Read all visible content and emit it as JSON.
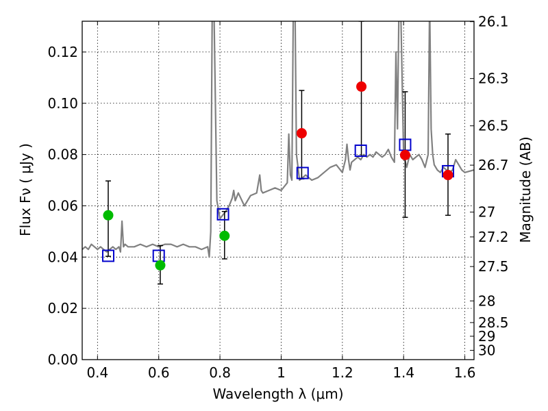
{
  "chart_data": {
    "type": "scatter",
    "xlabel": "Wavelength  λ (μm)",
    "ylabel": "Flux  Fν  ( μJy )",
    "y2label": "Magnitude (AB)",
    "xlim": [
      0.35,
      1.63
    ],
    "ylim": [
      0.0,
      0.132
    ],
    "grid": true,
    "x_ticks": [
      0.4,
      0.6,
      0.8,
      1.0,
      1.2,
      1.4,
      1.6
    ],
    "x_tick_labels": [
      "0.4",
      "0.6",
      "0.8",
      "1",
      "1.2",
      "1.4",
      "1.6"
    ],
    "y_ticks": [
      0.0,
      0.02,
      0.04,
      0.06,
      0.08,
      0.1,
      0.12
    ],
    "y_tick_labels": [
      "0.00",
      "0.02",
      "0.04",
      "0.06",
      "0.08",
      "0.10",
      "0.12"
    ],
    "y2_ticks": [
      "26.1",
      "26.3",
      "26.5",
      "26.7",
      "27",
      "27.2",
      "27.5",
      "28",
      "28.5",
      "29",
      "30"
    ],
    "colors": {
      "spectrum": "#808080",
      "green": "#00bb00",
      "red": "#ee0000",
      "model": "#0000cc",
      "errorbar": "#000000"
    },
    "spectrum": {
      "name": "model spectrum",
      "x": [
        0.35,
        0.36,
        0.37,
        0.38,
        0.39,
        0.4,
        0.41,
        0.42,
        0.43,
        0.44,
        0.45,
        0.46,
        0.47,
        0.475,
        0.48,
        0.485,
        0.49,
        0.5,
        0.52,
        0.54,
        0.56,
        0.58,
        0.6,
        0.62,
        0.64,
        0.66,
        0.68,
        0.7,
        0.72,
        0.74,
        0.76,
        0.765,
        0.77,
        0.775,
        0.78,
        0.79,
        0.8,
        0.82,
        0.83,
        0.84,
        0.845,
        0.85,
        0.86,
        0.88,
        0.9,
        0.92,
        0.93,
        0.935,
        0.94,
        0.96,
        0.98,
        1.0,
        1.02,
        1.025,
        1.03,
        1.035,
        1.04,
        1.045,
        1.05,
        1.06,
        1.07,
        1.08,
        1.09,
        1.1,
        1.12,
        1.14,
        1.16,
        1.18,
        1.2,
        1.21,
        1.215,
        1.22,
        1.225,
        1.23,
        1.24,
        1.25,
        1.26,
        1.27,
        1.28,
        1.29,
        1.3,
        1.31,
        1.32,
        1.33,
        1.34,
        1.35,
        1.36,
        1.37,
        1.375,
        1.38,
        1.385,
        1.39,
        1.4,
        1.41,
        1.42,
        1.43,
        1.44,
        1.45,
        1.46,
        1.47,
        1.48,
        1.485,
        1.49,
        1.495,
        1.5,
        1.51,
        1.52,
        1.53,
        1.54,
        1.55,
        1.56,
        1.57,
        1.58,
        1.59,
        1.6,
        1.63
      ],
      "y": [
        0.043,
        0.044,
        0.043,
        0.045,
        0.044,
        0.043,
        0.044,
        0.043,
        0.042,
        0.043,
        0.044,
        0.043,
        0.044,
        0.042,
        0.054,
        0.044,
        0.045,
        0.044,
        0.044,
        0.045,
        0.044,
        0.045,
        0.044,
        0.045,
        0.045,
        0.044,
        0.045,
        0.044,
        0.044,
        0.043,
        0.044,
        0.04,
        0.05,
        0.14,
        0.14,
        0.062,
        0.055,
        0.058,
        0.06,
        0.063,
        0.066,
        0.062,
        0.065,
        0.06,
        0.064,
        0.065,
        0.072,
        0.066,
        0.065,
        0.066,
        0.067,
        0.066,
        0.069,
        0.088,
        0.072,
        0.07,
        0.14,
        0.14,
        0.08,
        0.07,
        0.071,
        0.072,
        0.071,
        0.07,
        0.071,
        0.073,
        0.075,
        0.076,
        0.073,
        0.078,
        0.084,
        0.078,
        0.074,
        0.077,
        0.078,
        0.079,
        0.078,
        0.08,
        0.079,
        0.08,
        0.079,
        0.081,
        0.08,
        0.079,
        0.08,
        0.082,
        0.079,
        0.077,
        0.12,
        0.09,
        0.14,
        0.14,
        0.08,
        0.075,
        0.08,
        0.078,
        0.079,
        0.08,
        0.078,
        0.075,
        0.08,
        0.14,
        0.09,
        0.08,
        0.076,
        0.074,
        0.073,
        0.075,
        0.074,
        0.073,
        0.074,
        0.078,
        0.076,
        0.074,
        0.073,
        0.074
      ]
    },
    "points": [
      {
        "x": 0.435,
        "y": 0.0563,
        "err_low": 0.0403,
        "err_high": 0.0697,
        "color": "green"
      },
      {
        "x": 0.605,
        "y": 0.0368,
        "err_low": 0.0295,
        "err_high": 0.0445,
        "color": "green"
      },
      {
        "x": 0.815,
        "y": 0.0483,
        "err_low": 0.0393,
        "err_high": 0.0578,
        "color": "green"
      },
      {
        "x": 1.067,
        "y": 0.0883,
        "err_low": 0.0705,
        "err_high": 0.105,
        "color": "red"
      },
      {
        "x": 1.262,
        "y": 0.1065,
        "err_low": 0.0795,
        "err_high": 0.132,
        "color": "red"
      },
      {
        "x": 1.405,
        "y": 0.0798,
        "err_low": 0.0555,
        "err_high": 0.1045,
        "color": "red"
      },
      {
        "x": 1.545,
        "y": 0.072,
        "err_low": 0.0563,
        "err_high": 0.088,
        "color": "red"
      }
    ],
    "model_points": [
      {
        "x": 0.435,
        "y": 0.0405
      },
      {
        "x": 0.6,
        "y": 0.0405
      },
      {
        "x": 0.81,
        "y": 0.0567
      },
      {
        "x": 1.07,
        "y": 0.0728
      },
      {
        "x": 1.26,
        "y": 0.0815
      },
      {
        "x": 1.405,
        "y": 0.0838
      },
      {
        "x": 1.545,
        "y": 0.0735
      }
    ]
  }
}
